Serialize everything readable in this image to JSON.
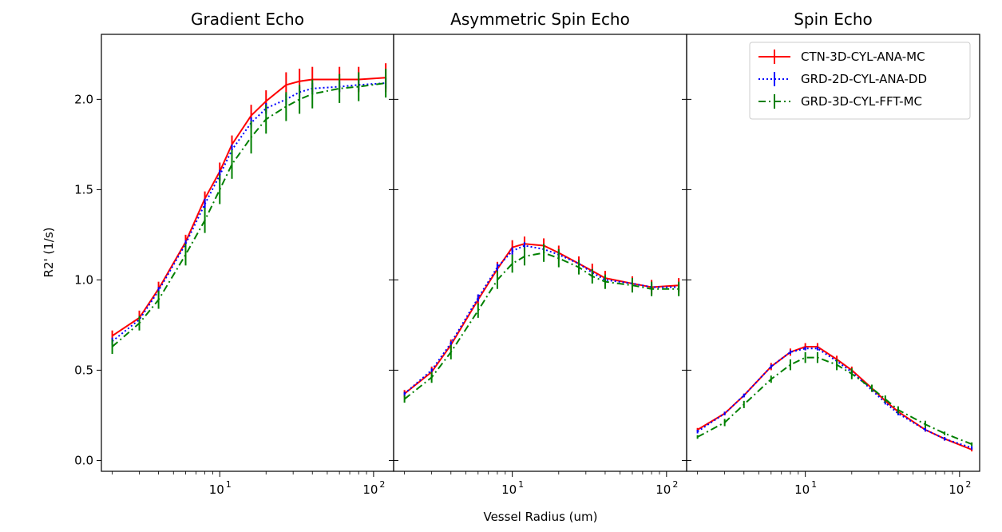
{
  "chart_data": {
    "type": "line",
    "layout": "three panels sharing y-axis",
    "xlabel": "Vessel Radius (um)",
    "ylabel": "R2' (1/s)",
    "xscale": "log",
    "xlim": [
      1.7,
      135
    ],
    "ylim": [
      -0.06,
      2.36
    ],
    "yticks": [
      0.0,
      0.5,
      1.0,
      1.5,
      2.0
    ],
    "ytick_labels": [
      "0.0",
      "0.5",
      "1.0",
      "1.5",
      "2.0"
    ],
    "xtick_labels": [
      {
        "base": "10",
        "exp": "1",
        "value": 10
      },
      {
        "base": "10",
        "exp": "2",
        "value": 100
      }
    ],
    "legend": {
      "position": "upper-right of last panel",
      "entries": [
        {
          "name": "CTN-3D-CYL-ANA-MC",
          "color": "#ff0000",
          "style": "solid"
        },
        {
          "name": "GRD-2D-CYL-ANA-DD",
          "color": "#0000ff",
          "style": "dotted"
        },
        {
          "name": "GRD-3D-CYL-FFT-MC",
          "color": "#008000",
          "style": "dashdot"
        }
      ]
    },
    "panels": [
      {
        "title": "Gradient Echo",
        "x": [
          2,
          3,
          4,
          6,
          8,
          10,
          12,
          16,
          20,
          27,
          33,
          40,
          60,
          80,
          120
        ],
        "series": [
          {
            "name": "CTN-3D-CYL-ANA-MC",
            "color": "#ff0000",
            "style": "solid",
            "values": [
              0.69,
              0.79,
              0.95,
              1.21,
              1.45,
              1.6,
              1.75,
              1.91,
              1.99,
              2.08,
              2.1,
              2.11,
              2.11,
              2.11,
              2.12
            ],
            "errors": [
              0.03,
              0.04,
              0.04,
              0.04,
              0.04,
              0.05,
              0.05,
              0.06,
              0.06,
              0.07,
              0.07,
              0.07,
              0.07,
              0.07,
              0.08
            ]
          },
          {
            "name": "GRD-2D-CYL-ANA-DD",
            "color": "#0000ff",
            "style": "dotted",
            "values": [
              0.66,
              0.78,
              0.94,
              1.2,
              1.42,
              1.58,
              1.72,
              1.87,
              1.95,
              2.0,
              2.04,
              2.06,
              2.07,
              2.08,
              2.09
            ],
            "errors": [
              0.02,
              0.02,
              0.02,
              0.02,
              0.03,
              0.03,
              0.03,
              0.03,
              0.03,
              0.03,
              0.03,
              0.03,
              0.03,
              0.03,
              0.03
            ]
          },
          {
            "name": "GRD-3D-CYL-FFT-MC",
            "color": "#008000",
            "style": "dashdot",
            "values": [
              0.63,
              0.76,
              0.89,
              1.14,
              1.33,
              1.5,
              1.64,
              1.79,
              1.89,
              1.96,
              2.0,
              2.03,
              2.06,
              2.07,
              2.09
            ],
            "errors": [
              0.04,
              0.04,
              0.05,
              0.06,
              0.07,
              0.08,
              0.08,
              0.09,
              0.08,
              0.08,
              0.08,
              0.08,
              0.08,
              0.08,
              0.08
            ]
          }
        ]
      },
      {
        "title": "Asymmetric Spin Echo",
        "x": [
          2,
          3,
          4,
          6,
          8,
          10,
          12,
          16,
          20,
          27,
          33,
          40,
          60,
          80,
          120
        ],
        "series": [
          {
            "name": "CTN-3D-CYL-ANA-MC",
            "color": "#ff0000",
            "style": "solid",
            "values": [
              0.37,
              0.49,
              0.64,
              0.89,
              1.06,
              1.18,
              1.2,
              1.19,
              1.15,
              1.09,
              1.05,
              1.01,
              0.98,
              0.96,
              0.97
            ],
            "errors": [
              0.02,
              0.03,
              0.03,
              0.03,
              0.04,
              0.04,
              0.04,
              0.04,
              0.04,
              0.04,
              0.04,
              0.04,
              0.04,
              0.04,
              0.04
            ]
          },
          {
            "name": "GRD-2D-CYL-ANA-DD",
            "color": "#0000ff",
            "style": "dotted",
            "values": [
              0.37,
              0.5,
              0.65,
              0.9,
              1.07,
              1.16,
              1.19,
              1.17,
              1.14,
              1.09,
              1.04,
              1.0,
              0.98,
              0.96,
              0.96
            ],
            "errors": [
              0.01,
              0.01,
              0.01,
              0.02,
              0.02,
              0.02,
              0.02,
              0.02,
              0.02,
              0.02,
              0.02,
              0.02,
              0.02,
              0.02,
              0.02
            ]
          },
          {
            "name": "GRD-3D-CYL-FFT-MC",
            "color": "#008000",
            "style": "dashdot",
            "values": [
              0.34,
              0.46,
              0.6,
              0.83,
              1.0,
              1.09,
              1.13,
              1.15,
              1.12,
              1.07,
              1.02,
              0.99,
              0.97,
              0.95,
              0.95
            ],
            "errors": [
              0.02,
              0.03,
              0.04,
              0.04,
              0.05,
              0.05,
              0.05,
              0.05,
              0.05,
              0.04,
              0.04,
              0.04,
              0.04,
              0.04,
              0.04
            ]
          }
        ]
      },
      {
        "title": "Spin Echo",
        "x": [
          2,
          3,
          4,
          6,
          8,
          10,
          12,
          16,
          20,
          27,
          33,
          40,
          60,
          80,
          120
        ],
        "series": [
          {
            "name": "CTN-3D-CYL-ANA-MC",
            "color": "#ff0000",
            "style": "solid",
            "values": [
              0.17,
              0.26,
              0.36,
              0.52,
              0.6,
              0.63,
              0.63,
              0.56,
              0.5,
              0.4,
              0.33,
              0.27,
              0.17,
              0.12,
              0.06
            ],
            "errors": [
              0.01,
              0.01,
              0.01,
              0.02,
              0.02,
              0.02,
              0.02,
              0.02,
              0.02,
              0.02,
              0.01,
              0.01,
              0.01,
              0.01,
              0.01
            ]
          },
          {
            "name": "GRD-2D-CYL-ANA-DD",
            "color": "#0000ff",
            "style": "dotted",
            "values": [
              0.16,
              0.26,
              0.36,
              0.52,
              0.6,
              0.62,
              0.62,
              0.55,
              0.49,
              0.39,
              0.32,
              0.26,
              0.17,
              0.12,
              0.07
            ],
            "errors": [
              0.01,
              0.01,
              0.01,
              0.01,
              0.01,
              0.01,
              0.01,
              0.01,
              0.01,
              0.01,
              0.01,
              0.01,
              0.01,
              0.01,
              0.01
            ]
          },
          {
            "name": "GRD-3D-CYL-FFT-MC",
            "color": "#008000",
            "style": "dashdot",
            "values": [
              0.13,
              0.21,
              0.31,
              0.45,
              0.53,
              0.57,
              0.57,
              0.53,
              0.48,
              0.4,
              0.34,
              0.28,
              0.2,
              0.15,
              0.09
            ],
            "errors": [
              0.01,
              0.02,
              0.02,
              0.02,
              0.03,
              0.03,
              0.03,
              0.03,
              0.03,
              0.02,
              0.02,
              0.02,
              0.02,
              0.01,
              0.01
            ]
          }
        ]
      }
    ]
  }
}
